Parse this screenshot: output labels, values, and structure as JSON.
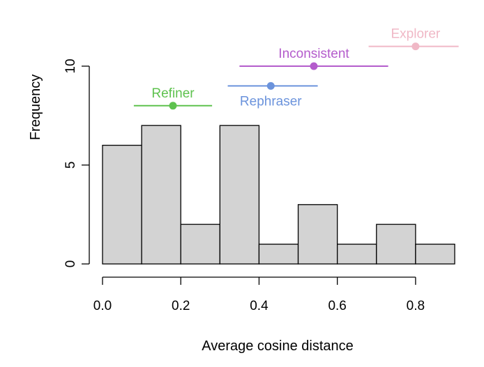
{
  "chart_data": {
    "type": "bar",
    "subtype": "histogram",
    "xlabel": "Average cosine distance",
    "ylabel": "Frequency",
    "bin_edges": [
      0.0,
      0.1,
      0.2,
      0.3,
      0.4,
      0.5,
      0.6,
      0.7,
      0.8,
      0.9
    ],
    "values": [
      6,
      7,
      2,
      7,
      1,
      3,
      1,
      2,
      1
    ],
    "xlim": [
      0.0,
      0.9
    ],
    "ylim": [
      0,
      11
    ],
    "x_ticks": [
      0.0,
      0.2,
      0.4,
      0.6,
      0.8
    ],
    "x_tick_labels": [
      "0.0",
      "0.2",
      "0.4",
      "0.6",
      "0.8"
    ],
    "y_ticks": [
      0,
      5,
      10
    ],
    "y_tick_labels": [
      "0",
      "5",
      "10"
    ],
    "bar_fill": "#d3d3d3",
    "bar_stroke": "#000000",
    "grid": false,
    "annotations": [
      {
        "label": "Refiner",
        "center": 0.18,
        "low": 0.08,
        "high": 0.28,
        "y": 8,
        "color": "#5ec24e"
      },
      {
        "label": "Rephraser",
        "center": 0.43,
        "low": 0.32,
        "high": 0.55,
        "y": 9,
        "color": "#6b93dc"
      },
      {
        "label": "Inconsistent",
        "center": 0.54,
        "low": 0.35,
        "high": 0.73,
        "y": 10,
        "color": "#b45ccc"
      },
      {
        "label": "Explorer",
        "center": 0.8,
        "low": 0.68,
        "high": 0.91,
        "y": 11,
        "color": "#f0b8c6"
      }
    ]
  }
}
